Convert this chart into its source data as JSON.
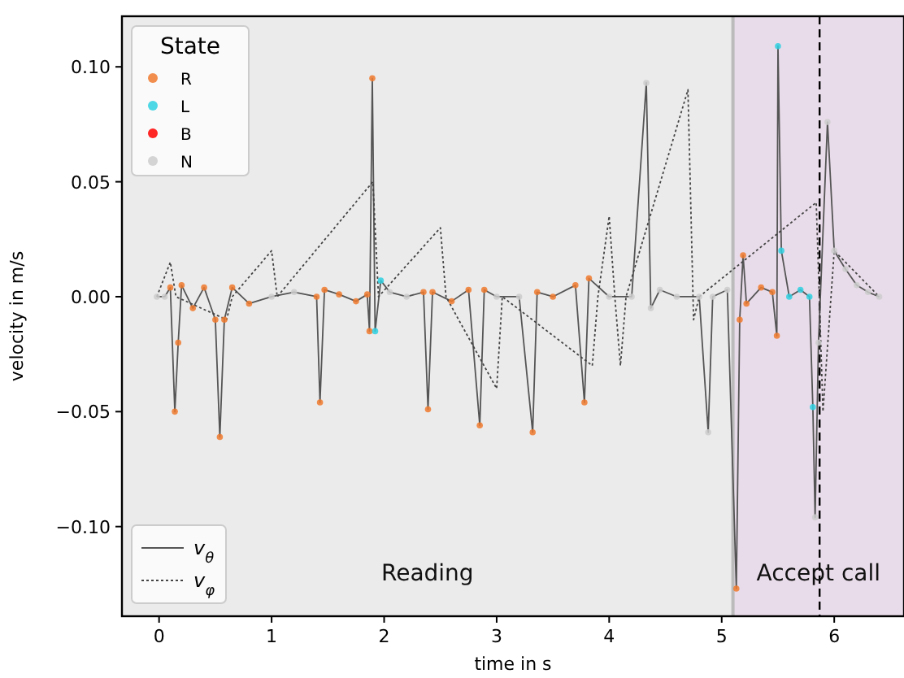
{
  "chart_data": {
    "type": "line",
    "xlabel": "time in s",
    "ylabel": "velocity in m/s",
    "legend_title": "State",
    "legend": "left",
    "grid": false,
    "xlim": [
      -0.33,
      6.62
    ],
    "xticks": [
      0,
      1,
      2,
      3,
      4,
      5,
      6
    ],
    "ylim": [
      -0.139,
      0.122
    ],
    "yticks": [
      {
        "value": 0.1,
        "label": "0.10"
      },
      {
        "value": 0.05,
        "label": "0.05"
      },
      {
        "value": 0,
        "label": "0.00"
      },
      {
        "value": -0.05,
        "label": "−0.05"
      },
      {
        "value": -0.1,
        "label": "−0.10"
      }
    ],
    "bands": [
      {
        "axis": "x",
        "from": -0.33,
        "to": 5.1,
        "label": "Reading",
        "color": "#ebebeb"
      },
      {
        "axis": "x",
        "from": 5.1,
        "to": 6.62,
        "label": "Accept call",
        "color": "#e9dcea"
      }
    ],
    "ref_lines": [
      {
        "axis": "x",
        "value": 5.1,
        "color": "#bbbbbb",
        "line_style": "solid"
      },
      {
        "axis": "x",
        "value": 5.87,
        "color": "#000000",
        "line_style": "dashed"
      }
    ],
    "series": [
      {
        "name": "v$_{θ}$",
        "line_style": "solid",
        "color": "#555555",
        "x": [
          -0.02,
          0.05,
          0.1,
          0.14,
          0.17,
          0.2,
          0.3,
          0.4,
          0.5,
          0.54,
          0.58,
          0.65,
          0.8,
          1.0,
          1.2,
          1.4,
          1.43,
          1.47,
          1.6,
          1.75,
          1.85,
          1.87,
          1.895,
          1.92,
          1.97,
          2.05,
          2.2,
          2.35,
          2.39,
          2.43,
          2.6,
          2.75,
          2.85,
          2.89,
          3.0,
          3.2,
          3.32,
          3.36,
          3.5,
          3.7,
          3.78,
          3.82,
          4.0,
          4.2,
          4.33,
          4.37,
          4.45,
          4.6,
          4.8,
          4.88,
          4.92,
          5.05,
          5.13,
          5.16,
          5.19,
          5.22,
          5.35,
          5.45,
          5.49,
          5.5,
          5.53,
          5.6,
          5.7,
          5.78,
          5.81,
          5.83,
          5.86,
          5.94,
          6.0,
          6.1,
          6.2,
          6.3,
          6.4
        ],
        "values": [
          0,
          0,
          0.004,
          -0.05,
          -0.02,
          0.005,
          -0.005,
          0.004,
          -0.01,
          -0.061,
          -0.01,
          0.004,
          -0.003,
          0,
          0.002,
          0,
          -0.046,
          0.003,
          0.001,
          -0.002,
          0.001,
          -0.015,
          0.095,
          -0.015,
          0.007,
          0.002,
          0,
          0.002,
          -0.049,
          0.002,
          -0.002,
          0.003,
          -0.056,
          0.003,
          0,
          0,
          -0.059,
          0.002,
          0,
          0.005,
          -0.046,
          0.008,
          0,
          0,
          0.093,
          -0.005,
          0.003,
          0,
          0,
          -0.059,
          0,
          0.003,
          -0.127,
          -0.01,
          0.018,
          -0.003,
          0.004,
          0.002,
          -0.017,
          0.109,
          0.02,
          0,
          0.003,
          0,
          -0.048,
          -0.096,
          -0.02,
          0.076,
          0.02,
          0.012,
          0.005,
          0.002,
          0
        ]
      },
      {
        "name": "v$_{φ}$",
        "line_style": "dotted",
        "color": "#444444",
        "x": [
          -0.02,
          0.1,
          0.15,
          0.6,
          0.65,
          1.0,
          1.05,
          1.9,
          1.95,
          2.5,
          2.55,
          3.0,
          3.05,
          3.85,
          3.9,
          4.0,
          4.05,
          4.1,
          4.15,
          4.7,
          4.75,
          4.8,
          5.84,
          5.9,
          6.0,
          6.4
        ],
        "values": [
          0,
          0.015,
          0,
          -0.01,
          0,
          0.02,
          0,
          0.05,
          0,
          0.03,
          0,
          -0.04,
          0,
          -0.03,
          0,
          0.035,
          0,
          -0.03,
          0,
          0.09,
          -0.01,
          0,
          0.041,
          -0.05,
          0.02,
          0
        ]
      },
      {
        "name": "R",
        "type": "scatter",
        "marker": "circle",
        "color": "#f07a2e",
        "x": [
          0.1,
          0.14,
          0.17,
          0.2,
          0.3,
          0.4,
          0.5,
          0.54,
          0.58,
          0.65,
          0.8,
          1.4,
          1.43,
          1.47,
          1.6,
          1.75,
          1.85,
          1.87,
          1.895,
          2.35,
          2.39,
          2.43,
          2.6,
          2.75,
          2.85,
          2.89,
          3.32,
          3.36,
          3.5,
          3.7,
          3.78,
          3.82,
          5.13,
          5.16,
          5.19,
          5.22,
          5.35,
          5.45,
          5.49
        ],
        "values": [
          0.004,
          -0.05,
          -0.02,
          0.005,
          -0.005,
          0.004,
          -0.01,
          -0.061,
          -0.01,
          0.004,
          -0.003,
          0,
          -0.046,
          0.003,
          0.001,
          -0.002,
          0.001,
          -0.015,
          0.095,
          0.002,
          -0.049,
          0.002,
          -0.002,
          0.003,
          -0.056,
          0.003,
          -0.059,
          0.002,
          0,
          0.005,
          -0.046,
          0.008,
          -0.127,
          -0.01,
          0.018,
          -0.003,
          0.004,
          0.002,
          -0.017
        ]
      },
      {
        "name": "L",
        "type": "scatter",
        "marker": "circle",
        "color": "#2fd0e0",
        "x": [
          1.92,
          1.97,
          5.5,
          5.53,
          5.6,
          5.7,
          5.78,
          5.81
        ],
        "values": [
          -0.015,
          0.007,
          0.109,
          0.02,
          0,
          0.003,
          0,
          -0.048
        ]
      },
      {
        "name": "B",
        "type": "scatter",
        "marker": "circle",
        "color": "#ff0000"
      },
      {
        "name": "N",
        "type": "scatter",
        "marker": "circle",
        "color": "#cccccc",
        "x": [
          -0.02,
          0.05,
          1.0,
          1.2,
          2.05,
          2.2,
          3.0,
          3.2,
          4.0,
          4.2,
          4.33,
          4.37,
          4.45,
          4.6,
          4.8,
          4.88,
          4.92,
          5.05,
          5.83,
          5.86,
          5.94,
          6.0,
          6.1,
          6.2,
          6.3,
          6.4
        ],
        "values": [
          0,
          0,
          0,
          0.002,
          0.002,
          0,
          0,
          0,
          0,
          0,
          0.093,
          -0.005,
          0.003,
          0,
          0,
          -0.059,
          0,
          0.003,
          -0.096,
          -0.02,
          0.076,
          0.02,
          0.012,
          0.005,
          0.002,
          0
        ]
      }
    ]
  }
}
